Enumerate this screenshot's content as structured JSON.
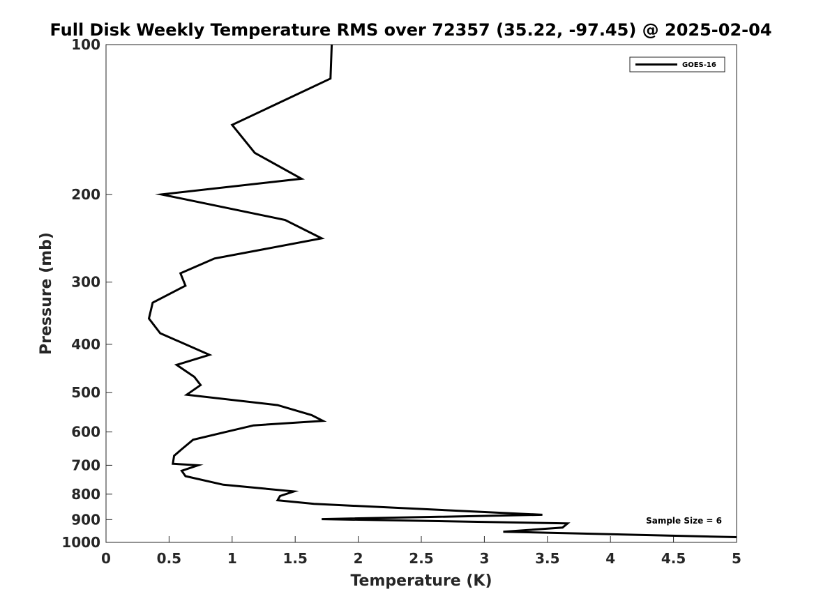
{
  "chart_data": {
    "type": "line",
    "title": "Full Disk Weekly Temperature RMS over 72357 (35.22, -97.45) @ 2025-02-04",
    "xlabel": "Temperature (K)",
    "ylabel": "Pressure (mb)",
    "xlim": [
      0,
      5
    ],
    "ylim": [
      100,
      1000
    ],
    "yscale": "log",
    "y_reversed": true,
    "xticks": [
      "0",
      "0.5",
      "1",
      "1.5",
      "2",
      "2.5",
      "3",
      "3.5",
      "4",
      "4.5",
      "5"
    ],
    "xtick_values": [
      0,
      0.5,
      1,
      1.5,
      2,
      2.5,
      3,
      3.5,
      4,
      4.5,
      5
    ],
    "yticks": [
      "100",
      "200",
      "300",
      "400",
      "500",
      "600",
      "700",
      "800",
      "900",
      "1000"
    ],
    "ytick_values": [
      100,
      200,
      300,
      400,
      500,
      600,
      700,
      800,
      900,
      1000
    ],
    "grid": false,
    "legend_position": "top-right",
    "annotation": "Sample Size = 6",
    "series": [
      {
        "name": "GOES-16",
        "color": "#000000",
        "x": [
          1.79,
          1.78,
          1.0,
          1.18,
          1.55,
          0.44,
          1.42,
          1.71,
          0.86,
          0.59,
          0.63,
          0.37,
          0.34,
          0.43,
          0.82,
          0.56,
          0.7,
          0.75,
          0.64,
          1.36,
          1.63,
          1.72,
          1.17,
          0.95,
          0.69,
          0.6,
          0.54,
          0.53,
          0.73,
          0.6,
          0.63,
          0.93,
          1.49,
          1.38,
          1.36,
          1.65,
          3.46,
          1.71,
          3.66,
          3.62,
          3.15,
          5.0
        ],
        "y": [
          100,
          117,
          145,
          165,
          186,
          200,
          225,
          245,
          269,
          288,
          305,
          330,
          355,
          380,
          420,
          440,
          465,
          483,
          505,
          530,
          555,
          570,
          582,
          600,
          622,
          650,
          670,
          695,
          700,
          718,
          736,
          766,
          790,
          807,
          823,
          837,
          880,
          898,
          916,
          934,
          952,
          976
        ]
      }
    ]
  }
}
